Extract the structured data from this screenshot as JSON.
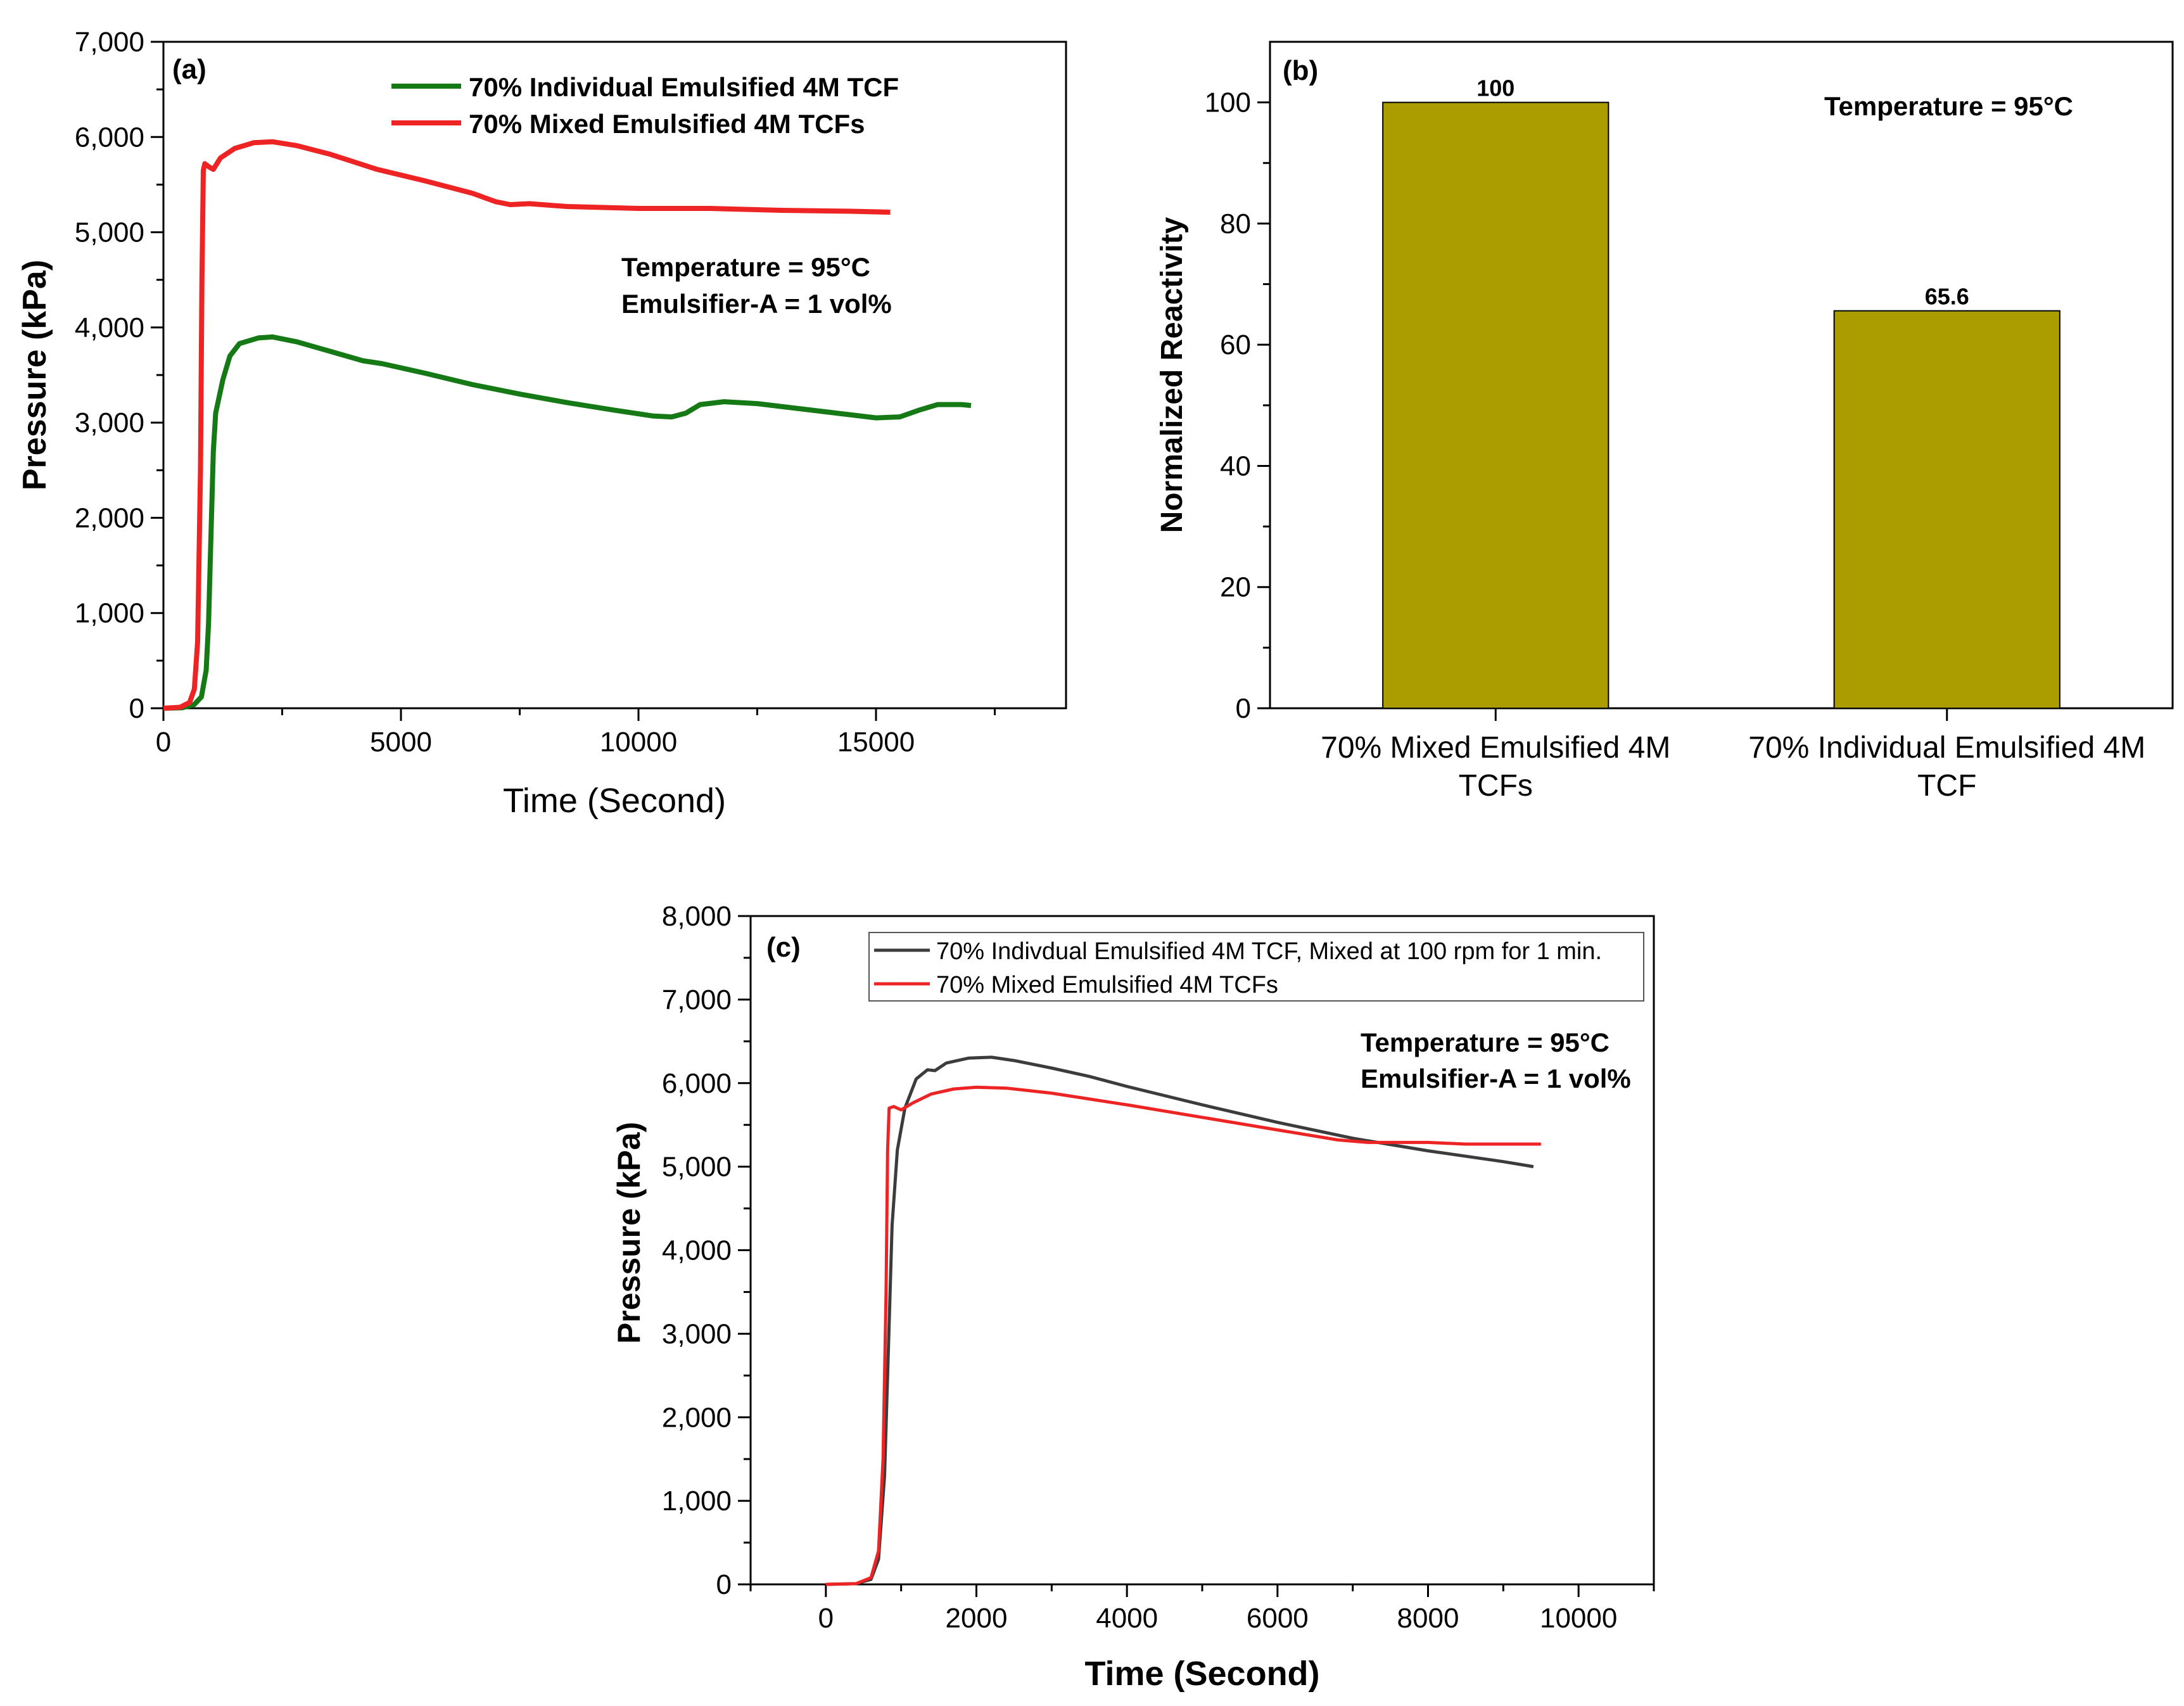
{
  "colors": {
    "green": "#157a15",
    "red": "#ee2424",
    "dark": "#3c3c3c",
    "olive": "#ab9d00"
  },
  "chart_data": [
    {
      "panel": "(a)",
      "type": "line",
      "xlabel": "Time (Second)",
      "ylabel": "Pressure (kPa)",
      "xlim": [
        0,
        19000
      ],
      "ylim": [
        0,
        7000
      ],
      "xticks": [
        "0",
        "5000",
        "10000",
        "15000"
      ],
      "yticks": [
        "0",
        "1,000",
        "2,000",
        "3,000",
        "4,000",
        "5,000",
        "6,000",
        "7,000"
      ],
      "annotation": [
        "Temperature = 95°C",
        "Emulsifier-A = 1 vol%"
      ],
      "series": [
        {
          "name": "70% Individual Emulsified 4M TCF",
          "color": "#157a15",
          "points": [
            [
              0,
              0
            ],
            [
              400,
              5
            ],
            [
              650,
              40
            ],
            [
              800,
              120
            ],
            [
              900,
              400
            ],
            [
              950,
              900
            ],
            [
              1000,
              1800
            ],
            [
              1050,
              2700
            ],
            [
              1100,
              3100
            ],
            [
              1250,
              3450
            ],
            [
              1400,
              3700
            ],
            [
              1600,
              3830
            ],
            [
              2000,
              3890
            ],
            [
              2300,
              3900
            ],
            [
              2800,
              3850
            ],
            [
              3500,
              3750
            ],
            [
              4200,
              3650
            ],
            [
              4600,
              3620
            ],
            [
              5500,
              3520
            ],
            [
              6500,
              3400
            ],
            [
              7500,
              3300
            ],
            [
              8500,
              3210
            ],
            [
              9500,
              3130
            ],
            [
              10300,
              3070
            ],
            [
              10700,
              3060
            ],
            [
              11000,
              3100
            ],
            [
              11300,
              3190
            ],
            [
              11800,
              3220
            ],
            [
              12500,
              3200
            ],
            [
              13500,
              3140
            ],
            [
              14500,
              3080
            ],
            [
              15000,
              3050
            ],
            [
              15500,
              3060
            ],
            [
              15900,
              3130
            ],
            [
              16300,
              3190
            ],
            [
              16800,
              3190
            ],
            [
              17000,
              3180
            ]
          ]
        },
        {
          "name": "70% Mixed Emulsified 4M TCFs",
          "color": "#ee2424",
          "points": [
            [
              0,
              0
            ],
            [
              350,
              10
            ],
            [
              550,
              60
            ],
            [
              650,
              200
            ],
            [
              720,
              700
            ],
            [
              780,
              2500
            ],
            [
              810,
              4500
            ],
            [
              840,
              5650
            ],
            [
              870,
              5720
            ],
            [
              950,
              5690
            ],
            [
              1050,
              5660
            ],
            [
              1200,
              5780
            ],
            [
              1500,
              5880
            ],
            [
              1900,
              5940
            ],
            [
              2300,
              5950
            ],
            [
              2800,
              5910
            ],
            [
              3500,
              5820
            ],
            [
              4500,
              5660
            ],
            [
              5500,
              5540
            ],
            [
              6500,
              5410
            ],
            [
              7000,
              5320
            ],
            [
              7300,
              5290
            ],
            [
              7700,
              5300
            ],
            [
              8500,
              5270
            ],
            [
              10000,
              5250
            ],
            [
              11500,
              5250
            ],
            [
              13000,
              5230
            ],
            [
              14500,
              5220
            ],
            [
              15300,
              5210
            ]
          ]
        }
      ]
    },
    {
      "panel": "(b)",
      "type": "bar",
      "ylabel": "Normalized Reactivity",
      "ylim": [
        0,
        110
      ],
      "yticks": [
        "0",
        "20",
        "40",
        "60",
        "80",
        "100"
      ],
      "annotation": "Temperature = 95°C",
      "categories": [
        [
          "70% Mixed Emulsified 4M",
          "TCFs"
        ],
        [
          "70% Individual Emulsified 4M",
          "TCF"
        ]
      ],
      "values": [
        100,
        65.6
      ],
      "value_labels": [
        "100",
        "65.6"
      ],
      "color": "#ab9d00"
    },
    {
      "panel": "(c)",
      "type": "line",
      "xlabel": "Time (Second)",
      "ylabel": "Pressure (kPa)",
      "xlim": [
        -1000,
        11000
      ],
      "ylim": [
        0,
        8000
      ],
      "xticks": [
        "0",
        "2000",
        "4000",
        "6000",
        "8000",
        "10000"
      ],
      "yticks": [
        "0",
        "1,000",
        "2,000",
        "3,000",
        "4,000",
        "5,000",
        "6,000",
        "7,000",
        "8,000"
      ],
      "annotation": [
        "Temperature = 95°C",
        "Emulsifier-A = 1 vol%"
      ],
      "series": [
        {
          "name": "70% Indivdual Emulsified 4M TCF, Mixed at 100 rpm for 1 min.",
          "color": "#3c3c3c",
          "points": [
            [
              0,
              0
            ],
            [
              400,
              8
            ],
            [
              600,
              60
            ],
            [
              700,
              300
            ],
            [
              780,
              1300
            ],
            [
              830,
              2800
            ],
            [
              880,
              4300
            ],
            [
              950,
              5200
            ],
            [
              1050,
              5700
            ],
            [
              1200,
              6050
            ],
            [
              1350,
              6160
            ],
            [
              1450,
              6150
            ],
            [
              1600,
              6240
            ],
            [
              1900,
              6300
            ],
            [
              2200,
              6310
            ],
            [
              2500,
              6270
            ],
            [
              3000,
              6180
            ],
            [
              3500,
              6080
            ],
            [
              4000,
              5960
            ],
            [
              5000,
              5740
            ],
            [
              6000,
              5530
            ],
            [
              7000,
              5340
            ],
            [
              8000,
              5190
            ],
            [
              9000,
              5060
            ],
            [
              9400,
              5000
            ]
          ]
        },
        {
          "name": "70% Mixed Emulsified 4M TCFs",
          "color": "#ee2424",
          "points": [
            [
              0,
              0
            ],
            [
              400,
              8
            ],
            [
              600,
              80
            ],
            [
              700,
              400
            ],
            [
              760,
              1500
            ],
            [
              800,
              3500
            ],
            [
              820,
              5200
            ],
            [
              840,
              5700
            ],
            [
              900,
              5720
            ],
            [
              1000,
              5680
            ],
            [
              1150,
              5760
            ],
            [
              1400,
              5870
            ],
            [
              1700,
              5930
            ],
            [
              2000,
              5950
            ],
            [
              2400,
              5940
            ],
            [
              3000,
              5880
            ],
            [
              4000,
              5740
            ],
            [
              5000,
              5590
            ],
            [
              6000,
              5440
            ],
            [
              6800,
              5320
            ],
            [
              7200,
              5290
            ],
            [
              7600,
              5290
            ],
            [
              8000,
              5290
            ],
            [
              8500,
              5270
            ],
            [
              9000,
              5270
            ],
            [
              9500,
              5270
            ]
          ]
        }
      ]
    }
  ]
}
